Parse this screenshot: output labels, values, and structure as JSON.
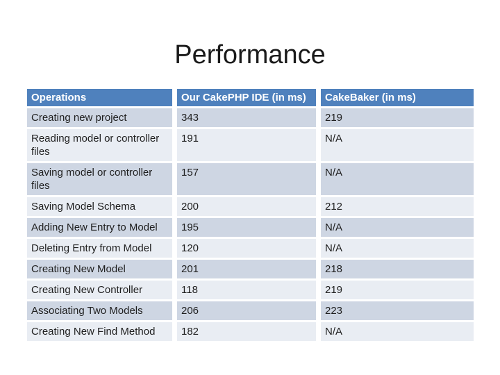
{
  "slide": {
    "title": "Performance"
  },
  "table": {
    "columns": [
      "Operations",
      "Our CakePHP IDE (in ms)",
      "CakeBaker (in ms)"
    ],
    "rows": [
      {
        "operation": "Creating new project",
        "ide": "343",
        "baker": "219"
      },
      {
        "operation": "Reading model or controller files",
        "ide": "191",
        "baker": "N/A"
      },
      {
        "operation": "Saving model or controller files",
        "ide": "157",
        "baker": "N/A"
      },
      {
        "operation": "Saving Model Schema",
        "ide": "200",
        "baker": "212"
      },
      {
        "operation": "Adding New Entry to Model",
        "ide": "195",
        "baker": "N/A"
      },
      {
        "operation": "Deleting Entry from Model",
        "ide": "120",
        "baker": "N/A"
      },
      {
        "operation": "Creating New Model",
        "ide": "201",
        "baker": "218"
      },
      {
        "operation": "Creating New Controller",
        "ide": "118",
        "baker": "219"
      },
      {
        "operation": "Associating Two Models",
        "ide": "206",
        "baker": "223"
      },
      {
        "operation": "Creating New Find Method",
        "ide": "182",
        "baker": "N/A"
      }
    ]
  },
  "chart_data": {
    "type": "table",
    "title": "Performance",
    "columns": [
      "Operations",
      "Our CakePHP IDE (in ms)",
      "CakeBaker (in ms)"
    ],
    "series": [
      {
        "name": "Our CakePHP IDE (in ms)",
        "values": [
          343,
          191,
          157,
          200,
          195,
          120,
          201,
          118,
          206,
          182
        ]
      },
      {
        "name": "CakeBaker (in ms)",
        "values": [
          219,
          null,
          null,
          212,
          null,
          null,
          218,
          219,
          223,
          null
        ]
      }
    ],
    "categories": [
      "Creating new project",
      "Reading model or controller files",
      "Saving model or controller files",
      "Saving Model Schema",
      "Adding New Entry to Model",
      "Deleting Entry from Model",
      "Creating New Model",
      "Creating New Controller",
      "Associating Two Models",
      "Creating New Find Method"
    ],
    "na_label": "N/A"
  },
  "colors": {
    "header_bg": "#4f81bd",
    "band_dark": "#ced6e3",
    "band_light": "#e9edf3",
    "header_text": "#ffffff",
    "body_text": "#1f1f1f",
    "title_text": "#1a1a1a"
  }
}
